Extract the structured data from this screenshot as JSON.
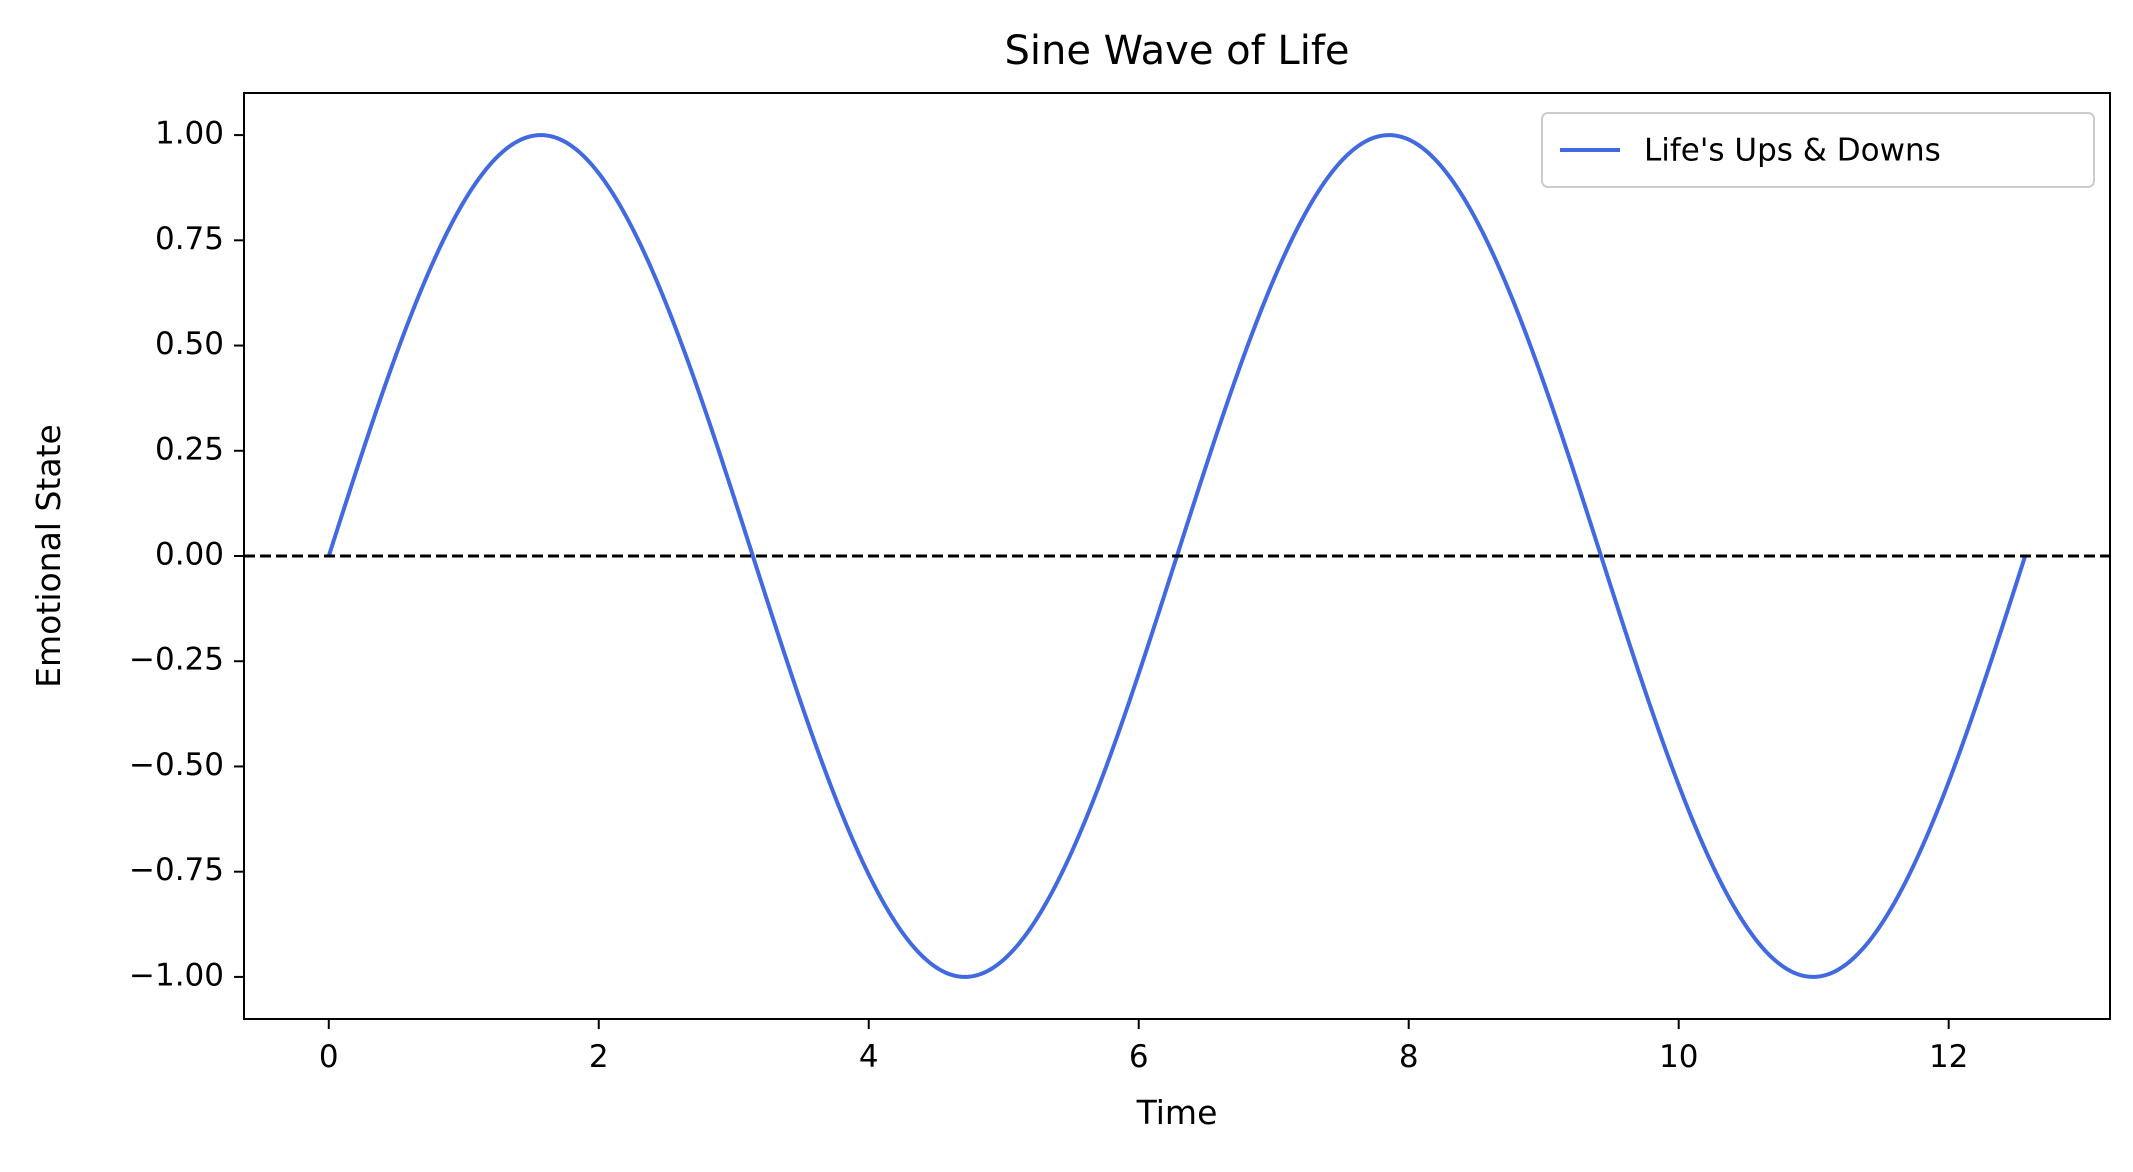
{
  "chart_data": {
    "type": "line",
    "title": "Sine Wave of Life",
    "xlabel": "Time",
    "ylabel": "Emotional State",
    "xlim": [
      -0.628,
      13.195
    ],
    "ylim": [
      -1.1,
      1.1
    ],
    "xticks": [
      0,
      2,
      4,
      6,
      8,
      10,
      12
    ],
    "xtick_labels": [
      "0",
      "2",
      "4",
      "6",
      "8",
      "10",
      "12"
    ],
    "yticks": [
      1.0,
      0.75,
      0.5,
      0.25,
      0.0,
      -0.25,
      -0.5,
      -0.75,
      -1.0
    ],
    "ytick_labels": [
      "1.00",
      "0.75",
      "0.50",
      "0.25",
      "0.00",
      "−0.25",
      "−0.50",
      "−0.75",
      "−1.00"
    ],
    "grid": false,
    "legend_position": "top-right",
    "series": [
      {
        "name": "Life's Ups & Downs",
        "color": "#4169e1",
        "function": "sin(x)",
        "x_range": [
          0,
          12.566
        ]
      }
    ],
    "reference_lines": [
      {
        "axis": "y",
        "value": 0,
        "style": "dashed",
        "color": "#000000"
      }
    ]
  }
}
